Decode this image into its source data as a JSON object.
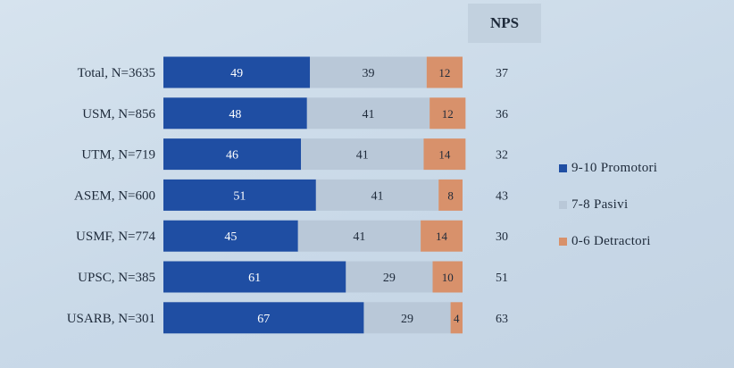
{
  "nps_header": "NPS",
  "chart_data": {
    "type": "bar",
    "orientation": "horizontal",
    "stacked": true,
    "percent": true,
    "categories": [
      "Total, N=3635",
      "USM, N=856",
      "UTM, N=719",
      "ASEM, N=600",
      "USMF, N=774",
      "UPSC, N=385",
      "USARB, N=301"
    ],
    "series": [
      {
        "name": "9-10 Promotori",
        "color": "#1f4ea3",
        "values": [
          49,
          48,
          46,
          51,
          45,
          61,
          67
        ]
      },
      {
        "name": "7-8 Pasivi",
        "color": "#b9c8d8",
        "values": [
          39,
          41,
          41,
          41,
          41,
          29,
          29
        ]
      },
      {
        "name": "0-6 Detractori",
        "color": "#d8916b",
        "values": [
          12,
          12,
          14,
          8,
          14,
          10,
          4
        ]
      }
    ],
    "nps": [
      37,
      36,
      32,
      43,
      30,
      51,
      63
    ],
    "legend_position": "right",
    "grid": false
  }
}
